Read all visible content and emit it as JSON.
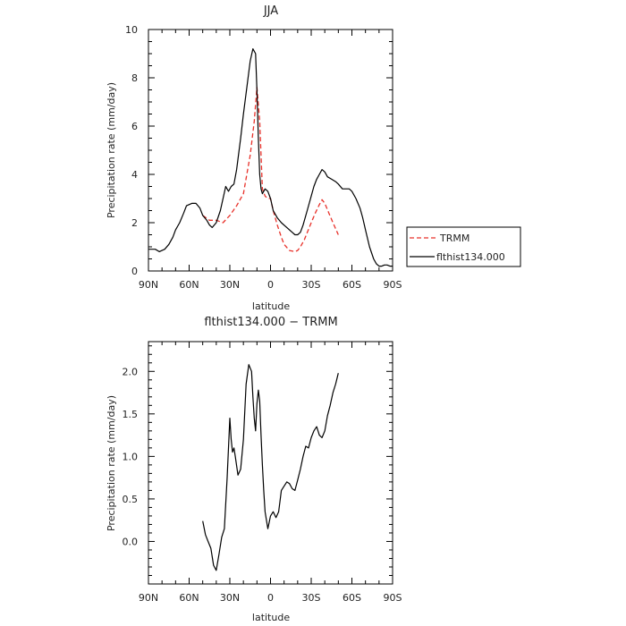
{
  "chart_data": [
    {
      "type": "line",
      "title": "JJA",
      "xlabel": "latitude",
      "ylabel": "Precipitation rate (mm/day)",
      "xlim": [
        90,
        -90
      ],
      "ylim": [
        0,
        10
      ],
      "x_ticks": [
        90,
        60,
        30,
        0,
        -30,
        -60,
        -90
      ],
      "x_tick_labels": [
        "90N",
        "60N",
        "30N",
        "0",
        "30S",
        "60S",
        "90S"
      ],
      "y_ticks": [
        0,
        2,
        4,
        6,
        8,
        10
      ],
      "y_tick_labels": [
        "0",
        "2",
        "4",
        "6",
        "8",
        "10"
      ],
      "legend": {
        "placement": "outside-right"
      },
      "series": [
        {
          "name": "TRMM",
          "color": "#e8312a",
          "dash": "dashed",
          "x": [
            50,
            45,
            40,
            35,
            30,
            25,
            20,
            15,
            12,
            10,
            8,
            6,
            4,
            2,
            0,
            -2,
            -5,
            -8,
            -10,
            -14,
            -18,
            -20,
            -22,
            -25,
            -30,
            -33,
            -36,
            -38,
            -40,
            -43,
            -46,
            -50
          ],
          "y": [
            2.3,
            2.1,
            2.1,
            2.0,
            2.3,
            2.7,
            3.2,
            4.8,
            6.2,
            7.6,
            6.2,
            3.4,
            3.1,
            3.0,
            3.0,
            2.5,
            1.9,
            1.4,
            1.1,
            0.85,
            0.8,
            0.85,
            1.0,
            1.3,
            2.0,
            2.4,
            2.75,
            2.95,
            2.8,
            2.4,
            2.0,
            1.5
          ]
        },
        {
          "name": "flthist134.000",
          "color": "#000000",
          "dash": "solid",
          "x": [
            90,
            85,
            82,
            78,
            75,
            72,
            70,
            67,
            64,
            62,
            58,
            55,
            52,
            50,
            47,
            45,
            43,
            40,
            37,
            35,
            33,
            31,
            29,
            27,
            25,
            22,
            20,
            17,
            15,
            13,
            11,
            10,
            9,
            8,
            7,
            6,
            5,
            4,
            2,
            0,
            -2,
            -5,
            -8,
            -12,
            -16,
            -18,
            -20,
            -22,
            -24,
            -27,
            -30,
            -32,
            -34,
            -36,
            -38,
            -40,
            -42,
            -45,
            -48,
            -50,
            -53,
            -56,
            -58,
            -60,
            -63,
            -66,
            -68,
            -70,
            -73,
            -76,
            -78,
            -80,
            -82,
            -84,
            -86,
            -88,
            -90
          ],
          "y": [
            0.9,
            0.9,
            0.8,
            0.9,
            1.1,
            1.4,
            1.7,
            2.0,
            2.4,
            2.7,
            2.8,
            2.8,
            2.6,
            2.3,
            2.1,
            1.9,
            1.8,
            2.0,
            2.5,
            3.0,
            3.5,
            3.3,
            3.5,
            3.6,
            4.2,
            5.5,
            6.5,
            7.8,
            8.7,
            9.2,
            9.0,
            7.5,
            5.5,
            4.0,
            3.4,
            3.2,
            3.3,
            3.4,
            3.3,
            3.0,
            2.5,
            2.2,
            2.0,
            1.8,
            1.6,
            1.5,
            1.5,
            1.6,
            1.9,
            2.5,
            3.1,
            3.5,
            3.8,
            4.0,
            4.2,
            4.1,
            3.9,
            3.8,
            3.7,
            3.6,
            3.4,
            3.4,
            3.4,
            3.3,
            3.0,
            2.6,
            2.2,
            1.7,
            1.0,
            0.5,
            0.3,
            0.2,
            0.2,
            0.25,
            0.25,
            0.2,
            0.2
          ]
        }
      ]
    },
    {
      "type": "line",
      "title": "flthist134.000 − TRMM",
      "xlabel": "latitude",
      "ylabel": "Precipitation rate (mm/day)",
      "xlim": [
        90,
        -90
      ],
      "ylim": [
        -0.5,
        2.35
      ],
      "x_ticks": [
        90,
        60,
        30,
        0,
        -30,
        -60,
        -90
      ],
      "x_tick_labels": [
        "90N",
        "60N",
        "30N",
        "0",
        "30S",
        "60S",
        "90S"
      ],
      "y_ticks": [
        0.0,
        0.5,
        1.0,
        1.5,
        2.0
      ],
      "y_tick_labels": [
        "0.0",
        "0.5",
        "1.0",
        "1.5",
        "2.0"
      ],
      "series": [
        {
          "name": "",
          "color": "#000000",
          "dash": "solid",
          "x": [
            50,
            48,
            46,
            44,
            42,
            40,
            38,
            36,
            34,
            32,
            30,
            29,
            28,
            27,
            26,
            24,
            22,
            20,
            18,
            16,
            14,
            13,
            12,
            11,
            10,
            9,
            8,
            7,
            6,
            5,
            4,
            2,
            0,
            -2,
            -4,
            -6,
            -8,
            -10,
            -12,
            -14,
            -16,
            -18,
            -20,
            -22,
            -24,
            -26,
            -28,
            -30,
            -32,
            -34,
            -36,
            -38,
            -40,
            -42,
            -44,
            -46,
            -48,
            -50
          ],
          "y": [
            0.24,
            0.08,
            0.0,
            -0.08,
            -0.28,
            -0.34,
            -0.15,
            0.05,
            0.15,
            0.75,
            1.45,
            1.2,
            1.05,
            1.1,
            1.0,
            0.78,
            0.85,
            1.2,
            1.85,
            2.08,
            2.0,
            1.7,
            1.45,
            1.3,
            1.62,
            1.78,
            1.65,
            1.25,
            0.9,
            0.6,
            0.35,
            0.15,
            0.3,
            0.35,
            0.28,
            0.35,
            0.6,
            0.65,
            0.7,
            0.68,
            0.62,
            0.6,
            0.72,
            0.85,
            1.0,
            1.12,
            1.1,
            1.22,
            1.3,
            1.35,
            1.25,
            1.22,
            1.3,
            1.48,
            1.6,
            1.75,
            1.85,
            1.98
          ]
        }
      ]
    }
  ]
}
